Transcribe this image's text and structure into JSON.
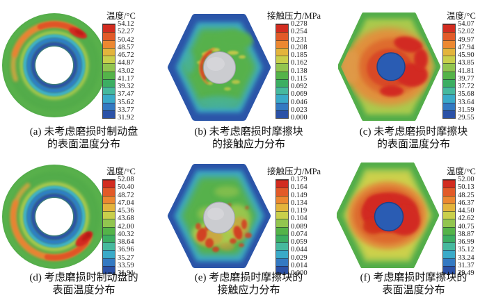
{
  "figure": {
    "background": "#ffffff",
    "colorbar_colors": [
      "#d22c20",
      "#e25a28",
      "#ec8831",
      "#e3b43c",
      "#c9cf4b",
      "#92c54f",
      "#54b349",
      "#3cae62",
      "#46b99e",
      "#3aaac8",
      "#3379c2",
      "#2b51a6"
    ],
    "panels": [
      {
        "id": "a",
        "legend_title": "温度/°C",
        "ticks": [
          "54.12",
          "52.27",
          "50.42",
          "48.57",
          "46.72",
          "44.87",
          "43.02",
          "41.17",
          "39.32",
          "37.47",
          "35.62",
          "33.77",
          "31.92"
        ],
        "caption_line1": "(a) 未考虑磨损时制动盘",
        "caption_line2": "的表面温度分布"
      },
      {
        "id": "b",
        "legend_title": "接触压力/MPa",
        "ticks": [
          "0.278",
          "0.254",
          "0.231",
          "0.208",
          "0.185",
          "0.162",
          "0.138",
          "0.115",
          "0.092",
          "0.069",
          "0.046",
          "0.023",
          "0.000"
        ],
        "caption_line1": "(b) 未考虑磨损时摩擦块",
        "caption_line2": "的接触应力分布"
      },
      {
        "id": "c",
        "legend_title": "温度/°C",
        "ticks": [
          "54.07",
          "52.02",
          "49.97",
          "47.94",
          "45.90",
          "43.85",
          "41.81",
          "39.77",
          "37.72",
          "35.68",
          "33.64",
          "31.59",
          "29.55"
        ],
        "caption_line1": "(c) 未考虑磨损时摩擦块",
        "caption_line2": "的表面温度分布"
      },
      {
        "id": "d",
        "legend_title": "温度/°C",
        "ticks": [
          "52.08",
          "50.40",
          "48.72",
          "47.04",
          "45.36",
          "43.68",
          "42.00",
          "40.32",
          "38.64",
          "36.96",
          "35.27",
          "33.59",
          "31.91"
        ],
        "caption_line1": "(d) 考虑磨损时制动盘的",
        "caption_line2": "表面温度分布"
      },
      {
        "id": "e",
        "legend_title": "接触压力/MPa",
        "ticks": [
          "0.179",
          "0.164",
          "0.149",
          "0.134",
          "0.119",
          "0.104",
          "0.089",
          "0.074",
          "0.059",
          "0.044",
          "0.029",
          "0.014",
          "0.000"
        ],
        "caption_line1": "(e) 考虑磨损时摩擦块的",
        "caption_line2": "接触应力分布"
      },
      {
        "id": "f",
        "legend_title": "温度/°C",
        "ticks": [
          "52.00",
          "50.13",
          "48.25",
          "46.37",
          "44.50",
          "42.62",
          "40.75",
          "38.87",
          "36.99",
          "35.12",
          "33.24",
          "31.37",
          "29.49"
        ],
        "caption_line1": "(f) 考虑磨损时摩擦块的",
        "caption_line2": "表面温度分布"
      }
    ]
  },
  "chart_data": [
    {
      "type": "heatmap",
      "panel": "a",
      "title": "(a) 未考虑磨损时制动盘的表面温度分布",
      "legend_title": "温度/°C",
      "unit": "°C",
      "scale_min": 31.92,
      "scale_max": 54.12,
      "scale_ticks": [
        54.12,
        52.27,
        50.42,
        48.57,
        46.72,
        44.87,
        43.02,
        41.17,
        39.32,
        37.47,
        35.62,
        33.77,
        31.92
      ],
      "shape": "annulus-disc",
      "legend_position": "right"
    },
    {
      "type": "heatmap",
      "panel": "b",
      "title": "(b) 未考虑磨损时摩擦块的接触应力分布",
      "legend_title": "接触压力/MPa",
      "unit": "MPa",
      "scale_min": 0.0,
      "scale_max": 0.278,
      "scale_ticks": [
        0.278,
        0.254,
        0.231,
        0.208,
        0.185,
        0.162,
        0.138,
        0.115,
        0.092,
        0.069,
        0.046,
        0.023,
        0.0
      ],
      "shape": "hexagonal-pad",
      "legend_position": "right"
    },
    {
      "type": "heatmap",
      "panel": "c",
      "title": "(c) 未考虑磨损时摩擦块的表面温度分布",
      "legend_title": "温度/°C",
      "unit": "°C",
      "scale_min": 29.55,
      "scale_max": 54.07,
      "scale_ticks": [
        54.07,
        52.02,
        49.97,
        47.94,
        45.9,
        43.85,
        41.81,
        39.77,
        37.72,
        35.68,
        33.64,
        31.59,
        29.55
      ],
      "shape": "hexagonal-pad",
      "legend_position": "right"
    },
    {
      "type": "heatmap",
      "panel": "d",
      "title": "(d) 考虑磨损时制动盘的表面温度分布",
      "legend_title": "温度/°C",
      "unit": "°C",
      "scale_min": 31.91,
      "scale_max": 52.08,
      "scale_ticks": [
        52.08,
        50.4,
        48.72,
        47.04,
        45.36,
        43.68,
        42.0,
        40.32,
        38.64,
        36.96,
        35.27,
        33.59,
        31.91
      ],
      "shape": "annulus-disc",
      "legend_position": "right"
    },
    {
      "type": "heatmap",
      "panel": "e",
      "title": "(e) 考虑磨损时摩擦块的接触应力分布",
      "legend_title": "接触压力/MPa",
      "unit": "MPa",
      "scale_min": 0.0,
      "scale_max": 0.179,
      "scale_ticks": [
        0.179,
        0.164,
        0.149,
        0.134,
        0.119,
        0.104,
        0.089,
        0.074,
        0.059,
        0.044,
        0.029,
        0.014,
        0.0
      ],
      "shape": "hexagonal-pad",
      "legend_position": "right"
    },
    {
      "type": "heatmap",
      "panel": "f",
      "title": "(f) 考虑磨损时摩擦块的表面温度分布",
      "legend_title": "温度/°C",
      "unit": "°C",
      "scale_min": 29.49,
      "scale_max": 52.0,
      "scale_ticks": [
        52.0,
        50.13,
        48.25,
        46.37,
        44.5,
        42.62,
        40.75,
        38.87,
        36.99,
        35.12,
        33.24,
        31.37,
        29.49
      ],
      "shape": "hexagonal-pad",
      "legend_position": "right"
    }
  ]
}
